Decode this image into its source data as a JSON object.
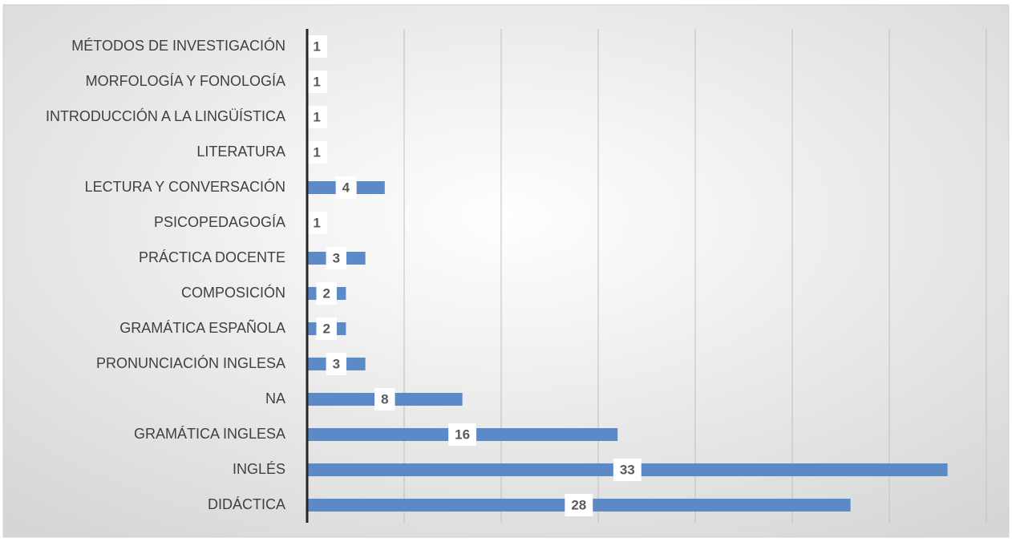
{
  "chart_data": {
    "type": "barh",
    "categories": [
      "MÉTODOS DE INVESTIGACIÓN",
      "MORFOLOGÍA Y FONOLOGÍA",
      "INTRODUCCIÓN A LA LINGÜÍSTICA",
      "LITERATURA",
      "LECTURA Y CONVERSACIÓN",
      "PSICOPEDAGOGÍA",
      "PRÁCTICA DOCENTE",
      "COMPOSICIÓN",
      "GRAMÁTICA ESPAÑOLA",
      "PRONUNCIACIÓN INGLESA",
      "NA",
      "GRAMÁTICA INGLESA",
      "INGLÉS",
      "DIDÁCTICA"
    ],
    "values": [
      1,
      1,
      1,
      1,
      4,
      1,
      3,
      2,
      2,
      3,
      8,
      16,
      33,
      28
    ],
    "color": "#5b8ac6",
    "xlim": [
      0,
      35
    ],
    "xticks": [
      0,
      5,
      10,
      15,
      20,
      25,
      30,
      35
    ],
    "grid": true
  }
}
